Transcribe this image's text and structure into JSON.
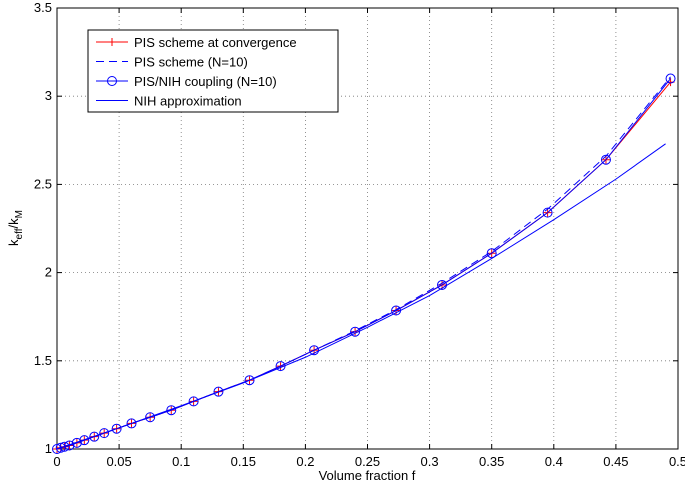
{
  "chart_data": {
    "type": "line",
    "x_label": "Volume fraction f",
    "y_label": [
      "k",
      "eff",
      "/k",
      "M"
    ],
    "xlim": [
      0,
      0.5
    ],
    "xticks": [
      0,
      0.05,
      0.1,
      0.15,
      0.2,
      0.25,
      0.3,
      0.35,
      0.4,
      0.45,
      0.5
    ],
    "ylim": [
      1,
      3.5
    ],
    "yticks": [
      1,
      1.5,
      2,
      2.5,
      3,
      3.5
    ],
    "grid": true,
    "legend": "upper left",
    "series": [
      {
        "name": "PIS scheme at convergence",
        "color": "#ff0000",
        "style": "solid",
        "marker": "plus",
        "x": [
          0,
          0.003,
          0.006,
          0.01,
          0.016,
          0.022,
          0.03,
          0.038,
          0.048,
          0.06,
          0.075,
          0.092,
          0.11,
          0.13,
          0.155,
          0.18,
          0.207,
          0.24,
          0.273,
          0.31,
          0.35,
          0.395,
          0.442,
          0.494
        ],
        "values": [
          1.0,
          1.007,
          1.013,
          1.02,
          1.035,
          1.05,
          1.07,
          1.09,
          1.115,
          1.145,
          1.18,
          1.22,
          1.27,
          1.325,
          1.39,
          1.47,
          1.56,
          1.665,
          1.785,
          1.93,
          2.11,
          2.34,
          2.64,
          3.08
        ]
      },
      {
        "name": "PIS scheme (N=10)",
        "color": "#0000ff",
        "style": "dashed",
        "marker": "none",
        "x": [
          0,
          0.003,
          0.006,
          0.01,
          0.016,
          0.022,
          0.03,
          0.038,
          0.048,
          0.06,
          0.075,
          0.092,
          0.11,
          0.13,
          0.155,
          0.18,
          0.207,
          0.24,
          0.273,
          0.31,
          0.35,
          0.395,
          0.442,
          0.494
        ],
        "values": [
          1.0,
          1.007,
          1.013,
          1.02,
          1.035,
          1.05,
          1.07,
          1.09,
          1.115,
          1.145,
          1.18,
          1.22,
          1.27,
          1.325,
          1.39,
          1.47,
          1.56,
          1.67,
          1.79,
          1.94,
          2.12,
          2.36,
          2.66,
          3.11
        ]
      },
      {
        "name": "PIS/NIH coupling (N=10)",
        "color": "#0000ff",
        "style": "solid",
        "marker": "circle",
        "x": [
          0,
          0.003,
          0.006,
          0.01,
          0.016,
          0.022,
          0.03,
          0.038,
          0.048,
          0.06,
          0.075,
          0.092,
          0.11,
          0.13,
          0.155,
          0.18,
          0.207,
          0.24,
          0.273,
          0.31,
          0.35,
          0.395,
          0.442,
          0.494
        ],
        "values": [
          1.0,
          1.007,
          1.013,
          1.02,
          1.035,
          1.05,
          1.07,
          1.09,
          1.115,
          1.145,
          1.18,
          1.22,
          1.27,
          1.325,
          1.39,
          1.47,
          1.56,
          1.665,
          1.785,
          1.93,
          2.11,
          2.34,
          2.64,
          3.1
        ]
      },
      {
        "name": "NIH approximation",
        "color": "#0000ff",
        "style": "solid",
        "marker": "none",
        "x": [
          0,
          0.05,
          0.1,
          0.15,
          0.2,
          0.25,
          0.3,
          0.35,
          0.4,
          0.45,
          0.49
        ],
        "values": [
          1.0,
          1.12,
          1.245,
          1.375,
          1.52,
          1.69,
          1.87,
          2.08,
          2.3,
          2.53,
          2.73
        ]
      }
    ]
  }
}
